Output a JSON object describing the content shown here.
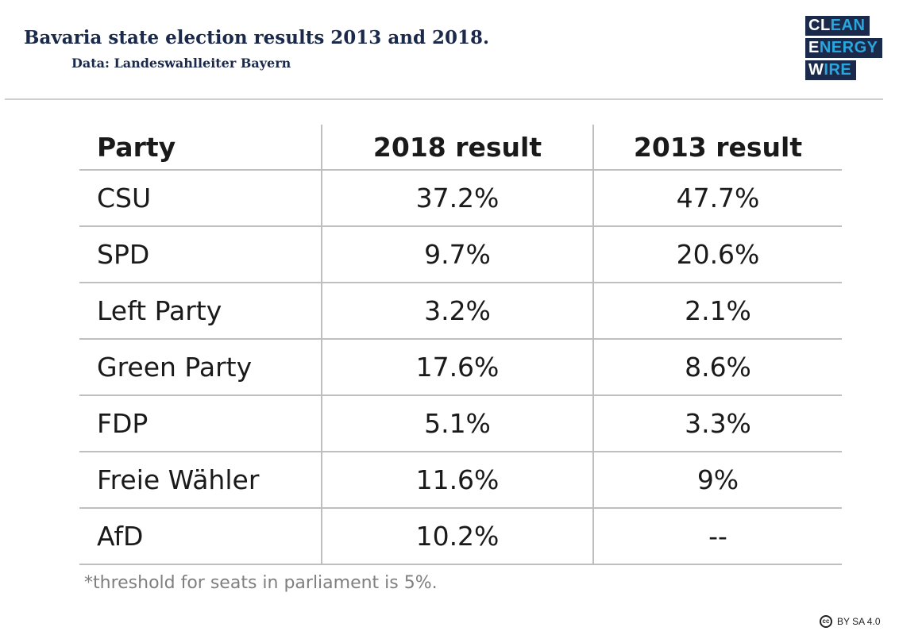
{
  "header": {
    "title": "Bavaria state election results 2013 and 2018.",
    "subtitle": "Data: Landeswahlleiter Bayern",
    "logo": {
      "line1_a": "CL",
      "line1_b": "EAN",
      "line2_a": "E",
      "line2_b": "NERGY",
      "line3_a": "W",
      "line3_b": "IRE"
    }
  },
  "colors": {
    "navy": "#1b2a4a",
    "accent": "#2aa6df",
    "grid": "#bfbfbf",
    "footnote": "#7f7f7f"
  },
  "chart_data": {
    "type": "table",
    "columns": [
      "Party",
      "2018 result",
      "2013 result"
    ],
    "rows": [
      [
        "CSU",
        "37.2%",
        "47.7%"
      ],
      [
        "SPD",
        "9.7%",
        "20.6%"
      ],
      [
        "Left Party",
        "3.2%",
        "2.1%"
      ],
      [
        "Green Party",
        "17.6%",
        "8.6%"
      ],
      [
        "FDP",
        "5.1%",
        "3.3%"
      ],
      [
        "Freie Wähler",
        "11.6%",
        "9%"
      ],
      [
        "AfD",
        "10.2%",
        "--"
      ]
    ]
  },
  "footnote": "*threshold for seats in parliament is 5%.",
  "license": {
    "icon": "cc",
    "text": "BY SA 4.0"
  }
}
